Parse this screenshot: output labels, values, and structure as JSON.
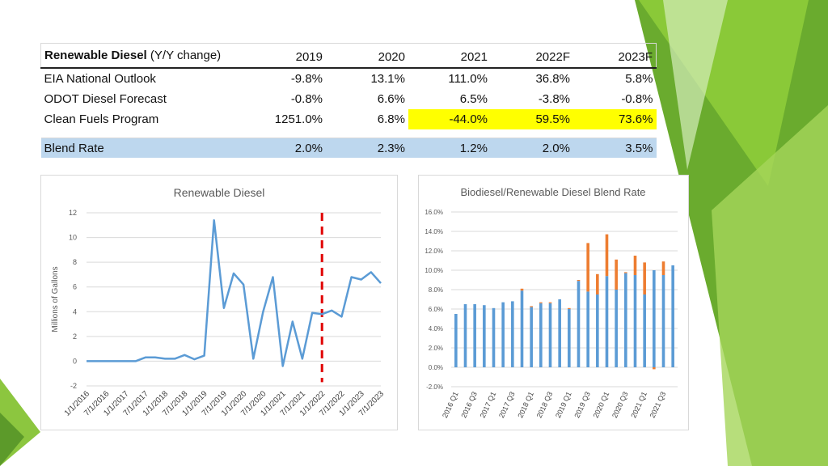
{
  "table": {
    "header": {
      "label_bold": "Renewable Diesel",
      "label_rest": " (Y/Y change)",
      "years": [
        "2019",
        "2020",
        "2021",
        "2022F",
        "2023F"
      ]
    },
    "rows": [
      {
        "label": "EIA National Outlook",
        "values": [
          "-9.8%",
          "13.1%",
          "111.0%",
          "36.8%",
          "5.8%"
        ]
      },
      {
        "label": "ODOT Diesel Forecast",
        "values": [
          "-0.8%",
          "6.6%",
          "6.5%",
          "-3.8%",
          "-0.8%"
        ]
      },
      {
        "label": "Clean Fuels Program",
        "values": [
          "1251.0%",
          "6.8%",
          "-44.0%",
          "59.5%",
          "73.6%"
        ],
        "highlight": [
          false,
          false,
          true,
          true,
          true
        ]
      }
    ],
    "blend": {
      "label": "Blend Rate",
      "values": [
        "2.0%",
        "2.3%",
        "1.2%",
        "2.0%",
        "3.5%"
      ]
    },
    "highlight_color": "#ffff00",
    "blend_color": "#bdd7ee"
  },
  "chart_data": [
    {
      "type": "line",
      "title": "Renewable Diesel",
      "ylabel": "Millions of Gallons",
      "xlabel": "",
      "ylim": [
        -2,
        12
      ],
      "yticks": [
        -2,
        0,
        2,
        4,
        6,
        8,
        10,
        12
      ],
      "x_tick_labels": [
        "1/1/2016",
        "7/1/2016",
        "1/1/2017",
        "7/1/2017",
        "1/1/2018",
        "7/1/2018",
        "1/1/2019",
        "7/1/2019",
        "1/1/2020",
        "7/1/2020",
        "1/1/2021",
        "7/1/2021",
        "1/1/2022",
        "7/1/2022",
        "1/1/2023",
        "7/1/2023"
      ],
      "x_start": "1/1/2016",
      "x_step": "quarter",
      "values": [
        0.0,
        0.0,
        0.0,
        0.0,
        0.0,
        0.0,
        0.3,
        0.3,
        0.2,
        0.2,
        0.5,
        0.15,
        0.45,
        11.4,
        4.3,
        7.1,
        6.2,
        0.2,
        4.0,
        6.8,
        -0.4,
        3.2,
        0.2,
        3.9,
        3.8,
        4.1,
        3.6,
        6.8,
        6.6,
        7.2,
        6.3
      ],
      "grid": true,
      "legend": "none",
      "series_color": "#5b9bd5",
      "forecast_marker": {
        "x": "1/1/2022",
        "color": "#e00000",
        "style": "dashed"
      }
    },
    {
      "type": "bar",
      "title": "Biodiesel/Renewable Diesel Blend Rate",
      "ylim": [
        -2.0,
        16.0
      ],
      "yticks": [
        "-2.0%",
        "0.0%",
        "2.0%",
        "4.0%",
        "6.0%",
        "8.0%",
        "10.0%",
        "12.0%",
        "14.0%",
        "16.0%"
      ],
      "categories": [
        "2016 Q1",
        "2016 Q2",
        "2016 Q3",
        "2016 Q4",
        "2017 Q1",
        "2017 Q2",
        "2017 Q3",
        "2017 Q4",
        "2018 Q1",
        "2018 Q2",
        "2018 Q3",
        "2018 Q4",
        "2019 Q1",
        "2019 Q2",
        "2019 Q3",
        "2019 Q4",
        "2020 Q1",
        "2020 Q2",
        "2020 Q3",
        "2020 Q4",
        "2021 Q1",
        "2021 Q2",
        "2021 Q3",
        "2021 Q4"
      ],
      "x_tick_labels": [
        "2016 Q1",
        "2016 Q3",
        "2017 Q1",
        "2017 Q3",
        "2018 Q1",
        "2018 Q3",
        "2019 Q1",
        "2019 Q3",
        "2020 Q1",
        "2020 Q3",
        "2021 Q1",
        "2021 Q3"
      ],
      "stacked": true,
      "series": [
        {
          "values": [
            5.5,
            6.5,
            6.5,
            6.4,
            6.1,
            6.7,
            6.8,
            7.9,
            6.2,
            6.6,
            6.6,
            7.0,
            6.0,
            8.9,
            7.8,
            7.5,
            9.4,
            8.0,
            9.7,
            9.5,
            7.5,
            10.0,
            9.5,
            10.5
          ],
          "color": "#5b9bd5"
        },
        {
          "values": [
            0.0,
            0.0,
            0.0,
            0.0,
            0.0,
            0.0,
            0.0,
            0.2,
            0.1,
            0.1,
            0.1,
            0.0,
            0.1,
            0.1,
            5.0,
            2.1,
            4.3,
            3.1,
            0.1,
            2.0,
            3.3,
            -0.2,
            1.4,
            0.0
          ],
          "color": "#ed7d31"
        }
      ],
      "grid": true,
      "legend": "none"
    }
  ]
}
